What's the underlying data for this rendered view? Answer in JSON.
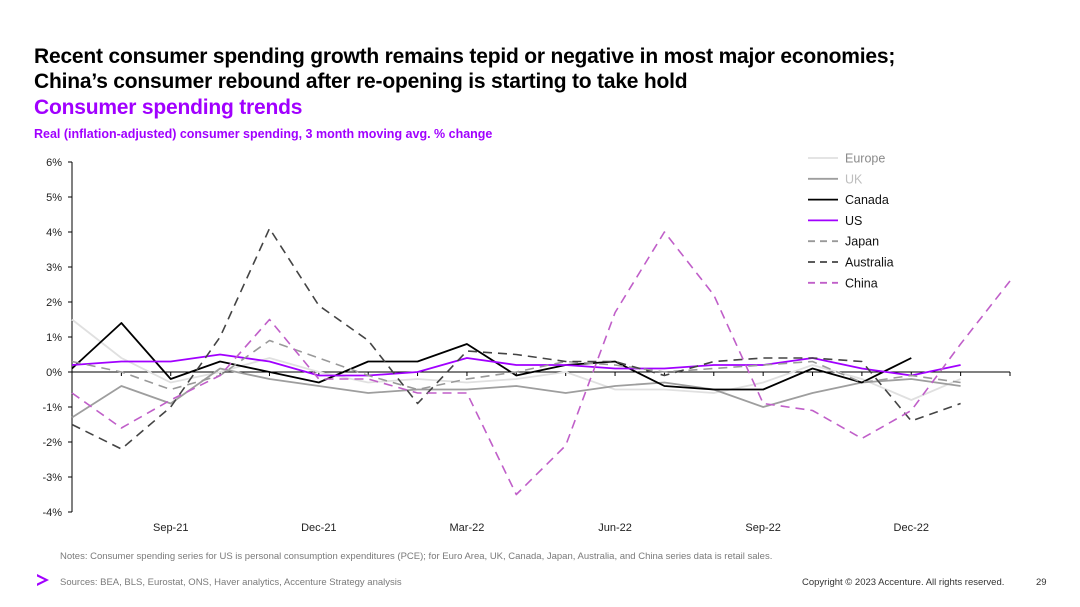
{
  "slide": {
    "headline_line1": "Recent consumer spending growth remains tepid or negative in most major economies;",
    "headline_line2": "China’s consumer rebound after re-opening is starting to take hold",
    "subtitle": "Consumer spending trends",
    "caption": "Real (inflation-adjusted) consumer spending, 3 month moving avg. % change",
    "notes": "Notes: Consumer spending series for US is personal consumption expenditures (PCE); for Euro Area, UK, Canada, Japan, Australia, and China series data is retail sales.",
    "sources": "Sources: BEA, BLS, Eurostat, ONS, Haver analytics, Accenture Strategy analysis",
    "copyright": "Copyright © 2023 Accenture. All rights reserved.",
    "page_number": "29"
  },
  "chart_data": {
    "type": "line",
    "title": "Consumer spending trends",
    "ylabel": "",
    "xlabel": "",
    "ylim": [
      -4,
      6
    ],
    "yticks": [
      -4,
      -3,
      -2,
      -1,
      0,
      1,
      2,
      3,
      4,
      5,
      6
    ],
    "ytick_labels": [
      "-4%",
      "-3%",
      "-2%",
      "-1%",
      "0%",
      "1%",
      "2%",
      "3%",
      "4%",
      "5%",
      "6%"
    ],
    "x": [
      "Jul-21",
      "Aug-21",
      "Sep-21",
      "Oct-21",
      "Nov-21",
      "Dec-21",
      "Jan-22",
      "Feb-22",
      "Mar-22",
      "Apr-22",
      "May-22",
      "Jun-22",
      "Jul-22",
      "Aug-22",
      "Sep-22",
      "Oct-22",
      "Nov-22",
      "Dec-22",
      "Jan-23",
      "Feb-23"
    ],
    "xtick_labels": [
      "Sep-21",
      "Dec-21",
      "Mar-22",
      "Jun-22",
      "Sep-22",
      "Dec-22"
    ],
    "xtick_indices": [
      2,
      5,
      8,
      11,
      14,
      17
    ],
    "grid": false,
    "legend_position": "top-right",
    "series": [
      {
        "name": "Europe",
        "color": "#e0e0e0",
        "dash": "solid",
        "values": [
          1.5,
          0.4,
          -0.3,
          0.0,
          0.4,
          0.0,
          -0.3,
          -0.2,
          -0.3,
          -0.2,
          0.0,
          -0.5,
          -0.5,
          -0.6,
          -0.3,
          0.2,
          -0.2,
          -0.8,
          -0.2,
          null
        ]
      },
      {
        "name": "UK",
        "color": "#9e9e9e",
        "dash": "solid",
        "values": [
          -1.3,
          -0.4,
          -0.9,
          0.1,
          -0.2,
          -0.4,
          -0.6,
          -0.5,
          -0.5,
          -0.4,
          -0.6,
          -0.4,
          -0.3,
          -0.5,
          -1.0,
          -0.6,
          -0.3,
          -0.2,
          -0.4,
          null
        ]
      },
      {
        "name": "Canada",
        "color": "#000000",
        "dash": "solid",
        "values": [
          0.1,
          1.4,
          -0.2,
          0.3,
          0.0,
          -0.3,
          0.3,
          0.3,
          0.8,
          -0.1,
          0.2,
          0.3,
          -0.4,
          -0.5,
          -0.5,
          0.1,
          -0.3,
          0.4,
          null,
          null
        ]
      },
      {
        "name": "US",
        "color": "#a100ff",
        "dash": "solid",
        "values": [
          0.2,
          0.3,
          0.3,
          0.5,
          0.3,
          -0.1,
          -0.1,
          0.0,
          0.4,
          0.2,
          0.2,
          0.1,
          0.1,
          0.2,
          0.2,
          0.4,
          0.1,
          -0.1,
          0.2,
          null
        ]
      },
      {
        "name": "Japan",
        "color": "#999999",
        "dash": "dashed",
        "values": [
          0.3,
          0.0,
          -0.5,
          -0.1,
          0.9,
          0.4,
          -0.1,
          -0.5,
          -0.2,
          0.0,
          0.3,
          0.2,
          0.0,
          0.1,
          0.2,
          0.3,
          -0.3,
          -0.1,
          -0.3,
          null
        ]
      },
      {
        "name": "Australia",
        "color": "#444444",
        "dash": "dashed",
        "values": [
          -1.5,
          -2.2,
          -1.0,
          1.0,
          4.1,
          1.9,
          0.9,
          -0.9,
          0.6,
          0.5,
          0.3,
          0.3,
          -0.1,
          0.3,
          0.4,
          0.4,
          0.3,
          -1.4,
          -0.9,
          null
        ]
      },
      {
        "name": "China",
        "color": "#c05fc9",
        "dash": "dashed",
        "values": [
          -0.6,
          -1.6,
          -0.8,
          -0.1,
          1.5,
          -0.2,
          -0.2,
          -0.6,
          -0.6,
          -3.5,
          -2.1,
          1.7,
          4.0,
          2.2,
          -0.9,
          -1.1,
          -1.9,
          -1.1,
          0.8,
          2.6
        ]
      }
    ]
  }
}
